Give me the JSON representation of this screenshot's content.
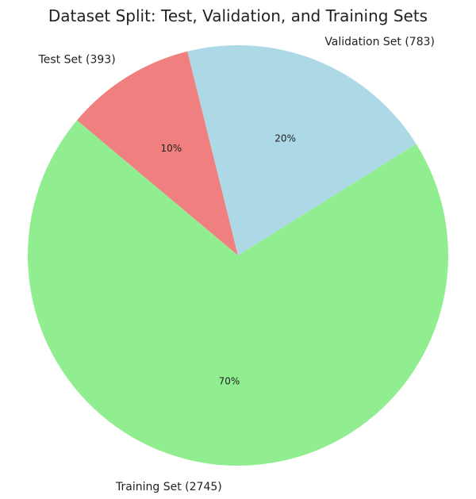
{
  "chart_data": {
    "type": "pie",
    "title": "Dataset Split: Test, Validation, and Training Sets",
    "slices": [
      {
        "label": "Test Set (393)",
        "value": 393,
        "percent_label": "10%",
        "color": "#f08080"
      },
      {
        "label": "Validation Set (783)",
        "value": 783,
        "percent_label": "20%",
        "color": "#add8e6"
      },
      {
        "label": "Training Set (2745)",
        "value": 2745,
        "percent_label": "70%",
        "color": "#90ee90"
      }
    ],
    "start_angle_deg": 140,
    "direction": "clockwise",
    "legend": "none"
  }
}
